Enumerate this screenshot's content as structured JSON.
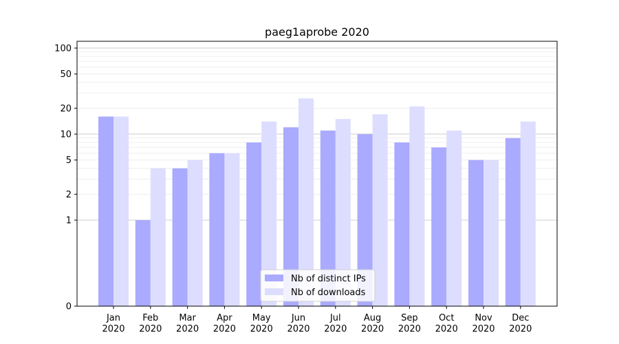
{
  "chart_data": {
    "type": "bar",
    "title": "paeg1aprobe 2020",
    "xlabel": "",
    "ylabel": "",
    "categories": [
      [
        "Jan",
        "2020"
      ],
      [
        "Feb",
        "2020"
      ],
      [
        "Mar",
        "2020"
      ],
      [
        "Apr",
        "2020"
      ],
      [
        "May",
        "2020"
      ],
      [
        "Jun",
        "2020"
      ],
      [
        "Jul",
        "2020"
      ],
      [
        "Aug",
        "2020"
      ],
      [
        "Sep",
        "2020"
      ],
      [
        "Oct",
        "2020"
      ],
      [
        "Nov",
        "2020"
      ],
      [
        "Dec",
        "2020"
      ]
    ],
    "series": [
      {
        "name": "Nb of distinct IPs",
        "color": "#aaaaff",
        "values": [
          16,
          1,
          4,
          6,
          8,
          12,
          11,
          10,
          8,
          7,
          5,
          9
        ]
      },
      {
        "name": "Nb of downloads",
        "color": "#ddddff",
        "values": [
          16,
          4,
          5,
          6,
          14,
          26,
          15,
          17,
          21,
          11,
          5,
          14
        ]
      }
    ],
    "y_scale": "symlog",
    "ylim": [
      0,
      120
    ],
    "y_ticks": [
      0,
      1,
      2,
      5,
      10,
      20,
      50,
      100
    ],
    "grid": true,
    "legend_position": "lower center"
  }
}
